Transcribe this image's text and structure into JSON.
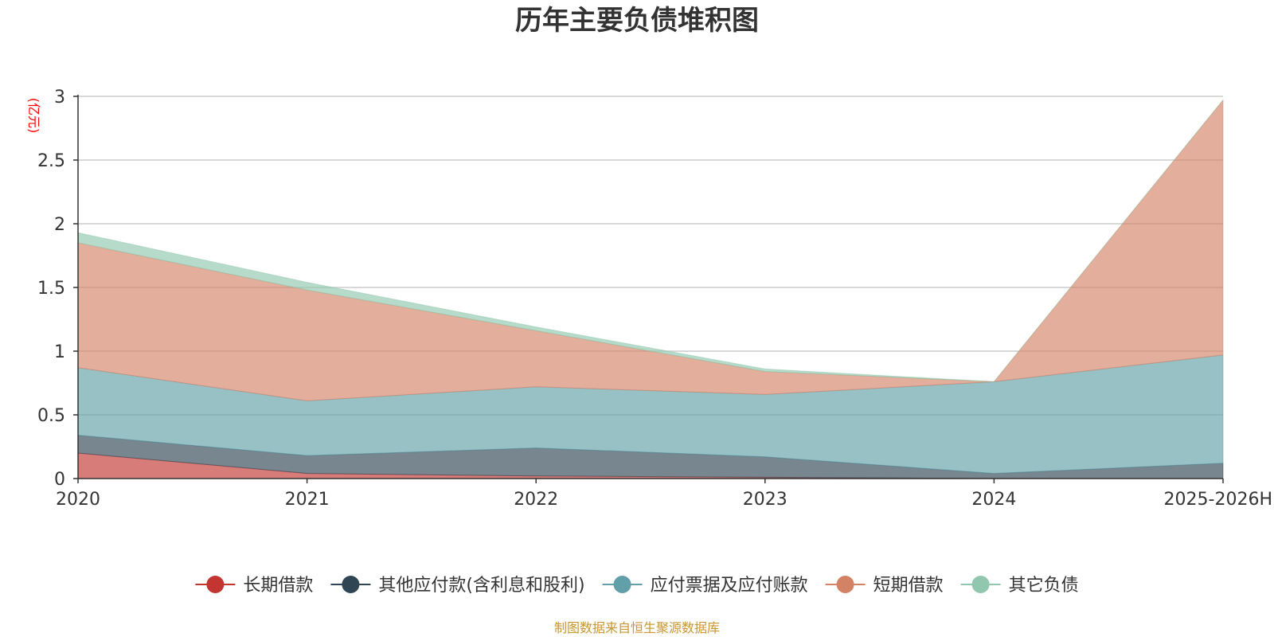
{
  "chart_data": {
    "type": "area",
    "stacked": true,
    "title": "历年主要负债堆积图",
    "ylabel": "(亿元)",
    "xlabel": "",
    "categories": [
      "2020",
      "2021",
      "2022",
      "2023",
      "2024",
      "2025-2026H"
    ],
    "ylim": [
      0,
      3
    ],
    "yticks": [
      "0",
      "0.5",
      "1",
      "1.5",
      "2",
      "2.5",
      "3"
    ],
    "ytick_values": [
      0,
      0.5,
      1,
      1.5,
      2,
      2.5,
      3
    ],
    "grid": true,
    "legend_position": "bottom",
    "series": [
      {
        "name": "长期借款",
        "color": "#c23531",
        "values": [
          0.2,
          0.04,
          0.02,
          0.01,
          0.0,
          0.0
        ]
      },
      {
        "name": "其他应付款(含利息和股利)",
        "color": "#2f4554",
        "values": [
          0.14,
          0.14,
          0.22,
          0.16,
          0.04,
          0.12
        ]
      },
      {
        "name": "应付票据及应付账款",
        "color": "#61a0a8",
        "values": [
          0.53,
          0.43,
          0.48,
          0.49,
          0.72,
          0.85
        ]
      },
      {
        "name": "短期借款",
        "color": "#d48265",
        "values": [
          0.98,
          0.87,
          0.44,
          0.18,
          0.0,
          2.0
        ]
      },
      {
        "name": "其它负债",
        "color": "#91c7ae",
        "values": [
          0.08,
          0.06,
          0.03,
          0.02,
          0.0,
          0.0
        ]
      }
    ],
    "source": "制图数据来自恒生聚源数据库",
    "source_color": "#c8962e",
    "unit_color": "#ff0000",
    "axis_color": "#333333",
    "grid_color": "#cccccc"
  }
}
